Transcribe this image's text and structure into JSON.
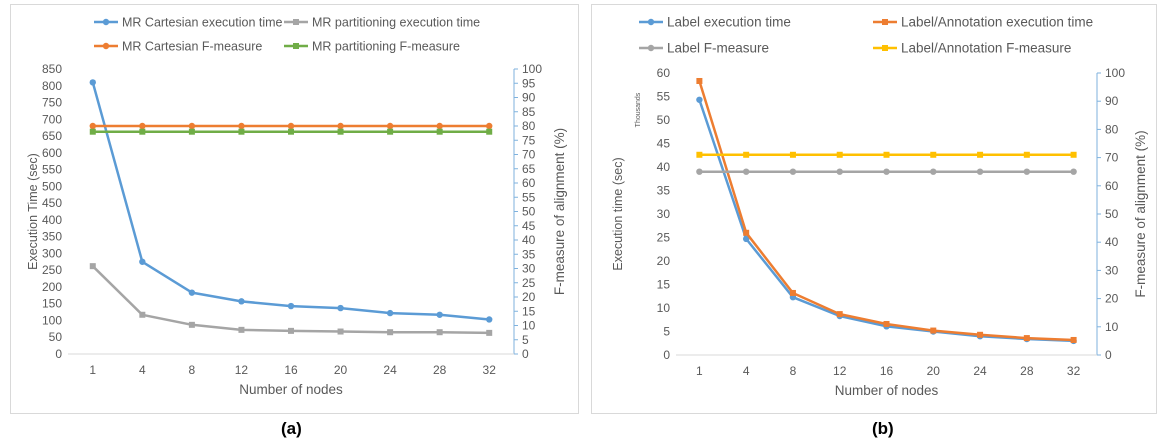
{
  "chart_data": [
    {
      "type": "line",
      "x": [
        "1",
        "4",
        "8",
        "12",
        "16",
        "20",
        "24",
        "28",
        "32"
      ],
      "xlabel": "Number of nodes",
      "ylabel": "Execution Time (sec)",
      "y2label": "F-measure of alignment (%)",
      "ylim": [
        0,
        850
      ],
      "ystep": 50,
      "y2lim": [
        0,
        100
      ],
      "y2step": 5,
      "y_ticks": [
        "0",
        "50",
        "100",
        "150",
        "200",
        "250",
        "300",
        "350",
        "400",
        "450",
        "500",
        "550",
        "600",
        "650",
        "700",
        "750",
        "800",
        "850"
      ],
      "y2_ticks": [
        "0",
        "5",
        "10",
        "15",
        "20",
        "25",
        "30",
        "35",
        "40",
        "45",
        "50",
        "55",
        "60",
        "65",
        "70",
        "75",
        "80",
        "85",
        "90",
        "95",
        "100"
      ],
      "grid": false,
      "legend_position": "top",
      "caption": "(a)",
      "series": [
        {
          "name": "MR Cartesian execution time",
          "axis": "left",
          "color": "#5b9bd5",
          "marker": "circle",
          "values": [
            810,
            275,
            183,
            157,
            143,
            137,
            122,
            117,
            103
          ]
        },
        {
          "name": "MR partitioning execution time",
          "axis": "left",
          "color": "#a5a5a5",
          "marker": "square",
          "values": [
            262,
            117,
            87,
            72,
            69,
            67,
            65,
            65,
            63
          ]
        },
        {
          "name": "MR Cartesian F-measure",
          "axis": "right",
          "color": "#ed7d31",
          "marker": "circle",
          "values": [
            80,
            80,
            80,
            80,
            80,
            80,
            80,
            80,
            80
          ]
        },
        {
          "name": "MR partitioning F-measure",
          "axis": "right",
          "color": "#70ad47",
          "marker": "square",
          "values": [
            78,
            78,
            78,
            78,
            78,
            78,
            78,
            78,
            78
          ]
        }
      ]
    },
    {
      "type": "line",
      "x": [
        "1",
        "4",
        "8",
        "12",
        "16",
        "20",
        "24",
        "28",
        "32"
      ],
      "xlabel": "Number of nodes",
      "ylabel": "Execution time (sec)",
      "yunit": "Thousands",
      "y2label": "F-measure of alignment (%)",
      "ylim": [
        0,
        60
      ],
      "ystep": 5,
      "y2lim": [
        0,
        100
      ],
      "y2step": 10,
      "y_ticks": [
        "0",
        "5",
        "10",
        "15",
        "20",
        "25",
        "30",
        "35",
        "40",
        "45",
        "50",
        "55",
        "60"
      ],
      "y2_ticks": [
        "0",
        "10",
        "20",
        "30",
        "40",
        "50",
        "60",
        "70",
        "80",
        "90",
        "100"
      ],
      "grid": false,
      "legend_position": "top",
      "caption": "(b)",
      "series": [
        {
          "name": "Label execution time",
          "axis": "left",
          "color": "#5b9bd5",
          "marker": "circle",
          "values": [
            54.3,
            24.7,
            12.3,
            8.3,
            6.1,
            5.0,
            4.0,
            3.4,
            3.0
          ]
        },
        {
          "name": "Label/Annotation execution time",
          "axis": "left",
          "color": "#ed7d31",
          "marker": "square",
          "values": [
            58.3,
            26.0,
            13.2,
            8.7,
            6.6,
            5.2,
            4.3,
            3.6,
            3.2
          ]
        },
        {
          "name": "Label F-measure",
          "axis": "right",
          "color": "#a5a5a5",
          "marker": "circle",
          "values": [
            65,
            65,
            65,
            65,
            65,
            65,
            65,
            65,
            65
          ]
        },
        {
          "name": "Label/Annotation F-measure",
          "axis": "right",
          "color": "#ffc000",
          "marker": "square",
          "values": [
            71,
            71,
            71,
            71,
            71,
            71,
            71,
            71,
            71
          ]
        }
      ]
    }
  ]
}
